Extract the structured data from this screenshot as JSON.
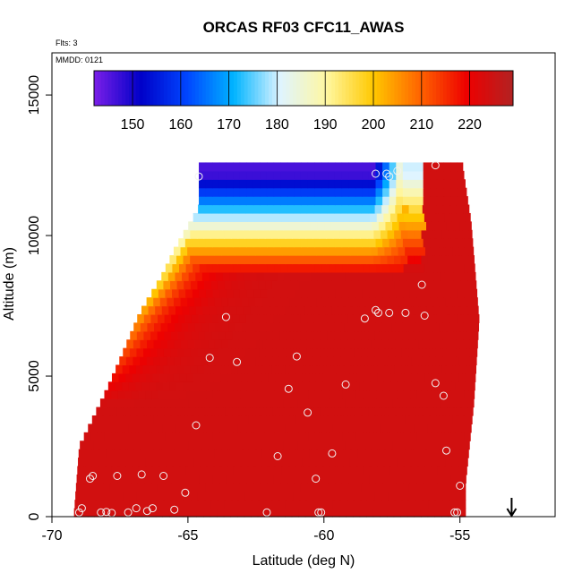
{
  "chart_data": {
    "type": "heatmap",
    "title": "ORCAS RF03 CFC11_AWAS",
    "subtitle_flights": "Flts: 3",
    "subtitle_date": "MMDD: 0121",
    "xlabel": "Latitude (deg N)",
    "ylabel": "Altitude (m)",
    "xlim": [
      -70,
      -51.5
    ],
    "ylim": [
      0,
      16500
    ],
    "x_ticks": [
      -70,
      -65,
      -60,
      -55
    ],
    "x_tick_labels": [
      "-70",
      "-65",
      "-60",
      "-55"
    ],
    "y_ticks": [
      0,
      5000,
      10000,
      15000
    ],
    "y_tick_labels": [
      "0",
      "5000",
      "10000",
      "15000"
    ],
    "colorbar": {
      "range": [
        142,
        229
      ],
      "ticks": [
        150,
        160,
        170,
        180,
        190,
        200,
        210,
        220
      ],
      "tick_labels": [
        "150",
        "160",
        "170",
        "180",
        "190",
        "200",
        "210",
        "220"
      ],
      "colors": [
        "#7b1fe8",
        "#0000c8",
        "#0046ff",
        "#00b4ff",
        "#dff4ff",
        "#fff7a0",
        "#ffc800",
        "#ff6400",
        "#ee0000",
        "#b22222"
      ]
    },
    "field_boundary_left": [
      {
        "alt": 0,
        "lat": -69.2
      },
      {
        "alt": 2500,
        "lat": -69.0
      },
      {
        "alt": 4500,
        "lat": -68.0
      },
      {
        "alt": 5600,
        "lat": -67.5
      },
      {
        "alt": 7200,
        "lat": -66.8
      },
      {
        "alt": 8500,
        "lat": -66.0
      },
      {
        "alt": 9500,
        "lat": -65.5
      },
      {
        "alt": 11000,
        "lat": -64.6
      },
      {
        "alt": 12200,
        "lat": -64.6
      }
    ],
    "field_boundary_right": [
      {
        "alt": 12400,
        "lat": -54.9
      },
      {
        "alt": 10500,
        "lat": -54.6
      },
      {
        "alt": 7000,
        "lat": -54.3
      },
      {
        "alt": 4000,
        "lat": -54.5
      },
      {
        "alt": 1200,
        "lat": -54.8
      },
      {
        "alt": 0,
        "lat": -54.8
      }
    ],
    "points": [
      [
        -69.0,
        150
      ],
      [
        -68.9,
        300
      ],
      [
        -68.2,
        150
      ],
      [
        -68.0,
        170
      ],
      [
        -67.8,
        130
      ],
      [
        -67.2,
        150
      ],
      [
        -66.9,
        300
      ],
      [
        -66.5,
        200
      ],
      [
        -66.3,
        300
      ],
      [
        -65.5,
        250
      ],
      [
        -65.1,
        850
      ],
      [
        -68.6,
        1350
      ],
      [
        -68.5,
        1450
      ],
      [
        -67.6,
        1450
      ],
      [
        -66.7,
        1500
      ],
      [
        -65.9,
        1450
      ],
      [
        -64.7,
        3250
      ],
      [
        -64.2,
        5650
      ],
      [
        -63.6,
        7100
      ],
      [
        -63.2,
        5500
      ],
      [
        -62.1,
        150
      ],
      [
        -61.7,
        2150
      ],
      [
        -61.3,
        4550
      ],
      [
        -61.0,
        5700
      ],
      [
        -60.6,
        3700
      ],
      [
        -60.3,
        1350
      ],
      [
        -60.2,
        150
      ],
      [
        -60.1,
        150
      ],
      [
        -59.7,
        2250
      ],
      [
        -59.2,
        4700
      ],
      [
        -58.5,
        7050
      ],
      [
        -58.1,
        7350
      ],
      [
        -58.0,
        7250
      ],
      [
        -57.6,
        7250
      ],
      [
        -57.0,
        7250
      ],
      [
        -56.4,
        8250
      ],
      [
        -56.3,
        7150
      ],
      [
        -55.9,
        4750
      ],
      [
        -55.6,
        4300
      ],
      [
        -55.5,
        2350
      ],
      [
        -55.2,
        150
      ],
      [
        -55.1,
        150
      ],
      [
        -55.0,
        1100
      ],
      [
        -58.1,
        12200
      ],
      [
        -57.7,
        12200
      ],
      [
        -57.6,
        12100
      ],
      [
        -57.3,
        12300
      ],
      [
        -55.9,
        12500
      ],
      [
        -64.6,
        12100
      ]
    ],
    "arrow_marker_lat": -53.1
  }
}
